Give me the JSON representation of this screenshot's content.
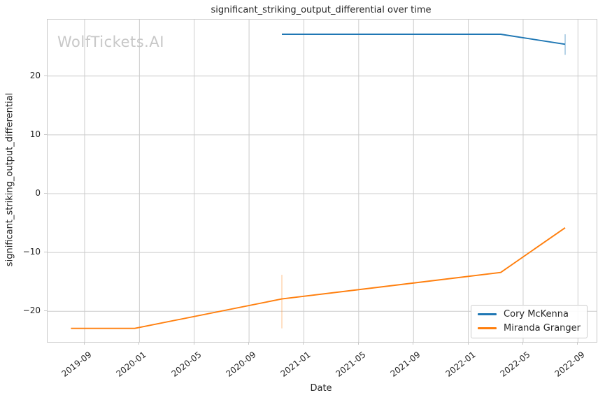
{
  "chart": {
    "title": "significant_striking_output_differential over time",
    "xlabel": "Date",
    "ylabel": "significant_striking_output_differential",
    "watermark": "WolfTickets.AI"
  },
  "colors": {
    "blue": "#1f77b4",
    "orange": "#ff7f0e",
    "grid": "#cccccc",
    "spine": "#c8c8c8",
    "text": "#262626",
    "watermark": "#c8c8c8"
  },
  "chart_data": {
    "type": "line",
    "title": "significant_striking_output_differential over time",
    "xlabel": "Date",
    "ylabel": "significant_striking_output_differential",
    "grid": true,
    "legend_position": "lower right",
    "x_ticks": [
      "2019-09",
      "2020-01",
      "2020-05",
      "2020-09",
      "2021-01",
      "2021-05",
      "2021-09",
      "2022-01",
      "2022-05",
      "2022-09"
    ],
    "y_ticks": [
      20,
      10,
      0,
      -10,
      -20
    ],
    "xlim": [
      "2019-06-10",
      "2022-10-12"
    ],
    "ylim": [
      -25.2,
      29.6
    ],
    "series": [
      {
        "name": "Cory McKenna",
        "color": "#1f77b4",
        "x": [
          "2020-11-13",
          "2022-03-12",
          "2022-08-03"
        ],
        "y": [
          27.1,
          27.1,
          25.4
        ]
      },
      {
        "name": "Miranda Granger",
        "color": "#ff7f0e",
        "x": [
          "2019-08-01",
          "2019-12-21",
          "2020-11-13",
          "2022-03-12",
          "2022-08-03"
        ],
        "y": [
          -22.9,
          -22.9,
          -17.9,
          -13.4,
          -5.8
        ]
      }
    ],
    "error_bars": [
      {
        "series": "Cory McKenna",
        "x": "2022-08-03",
        "y_min": 23.6,
        "y_max": 27.1,
        "color": "rgba(31,119,180,0.4)"
      },
      {
        "series": "Miranda Granger",
        "x": "2020-11-13",
        "y_min": -22.9,
        "y_max": -13.8,
        "color": "rgba(255,127,14,0.3)"
      }
    ]
  }
}
